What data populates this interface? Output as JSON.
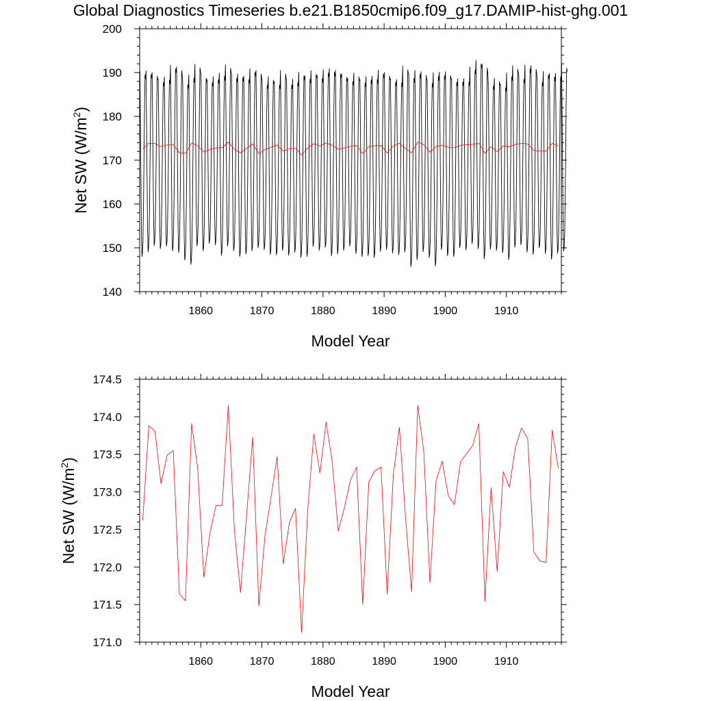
{
  "title": "Global Diagnostics Timeseries b.e21.B1850cmip6.f09_g17.DAMIP-hist-ghg.001",
  "chart_data": [
    {
      "type": "line",
      "xlabel": "Model Year",
      "ylabel": "Net SW (W/m²)",
      "ylabel_main": "Net SW (W/m",
      "ylabel_sup": "2",
      "ylabel_tail": ")",
      "xlim": [
        1850,
        1919
      ],
      "ylim": [
        140,
        200
      ],
      "x_ticks": [
        1860,
        1870,
        1880,
        1890,
        1900,
        1910
      ],
      "x_tick_labels": [
        "1860",
        "1870",
        "1880",
        "1890",
        "1900",
        "1910"
      ],
      "y_ticks": [
        140,
        150,
        160,
        170,
        180,
        190,
        200
      ],
      "y_tick_labels": [
        "140",
        "150",
        "160",
        "170",
        "180",
        "190",
        "200"
      ],
      "grid": false,
      "series": [
        {
          "color": "#000000",
          "style": "monthly",
          "x_start": 1850,
          "annual_max": [
            190.3,
            190.4,
            190.0,
            188.5,
            189.0,
            191.7,
            191.3,
            188.0,
            189.5,
            191.9,
            189.5,
            188.4,
            189.1,
            189.9,
            191.8,
            189.5,
            189.7,
            189.2,
            190.9,
            190.5,
            187.9,
            189.1,
            187.9,
            190.5,
            187.9,
            188.5,
            190.1,
            189.3,
            190.4,
            189.4,
            190.7,
            190.9,
            190.5,
            189.7,
            188.7,
            189.9,
            188.4,
            189.1,
            189.2,
            190.5,
            190.0,
            188.6,
            188.4,
            191.5,
            189.5,
            190.5,
            190.2,
            188.3,
            190.0,
            190.1,
            190.2,
            188.6,
            188.6,
            188.6,
            191.3,
            192.8,
            191.9,
            187.7,
            188.7,
            187.3,
            189.9,
            191.6,
            189.2,
            191.7,
            191.6,
            188.5,
            190.3,
            189.8,
            189.8,
            191.9
          ],
          "annual_min": [
            148.0,
            149.1,
            150.5,
            149.8,
            150.4,
            149.3,
            148.9,
            147.2,
            146.2,
            150.4,
            149.3,
            151.0,
            150.7,
            148.3,
            150.4,
            149.3,
            148.0,
            148.6,
            149.3,
            150.0,
            149.6,
            148.5,
            148.4,
            149.4,
            148.3,
            149.0,
            147.8,
            148.0,
            150.3,
            149.4,
            150.1,
            148.2,
            148.6,
            149.4,
            150.4,
            148.7,
            148.0,
            148.2,
            147.8,
            149.2,
            149.6,
            148.8,
            148.4,
            149.0,
            145.7,
            147.3,
            149.1,
            147.8,
            145.9,
            149.6,
            148.2,
            148.0,
            150.0,
            149.5,
            150.9,
            149.8,
            147.5,
            149.7,
            149.4,
            148.9,
            147.3,
            150.1,
            150.7,
            149.0,
            148.5,
            150.0,
            148.7,
            147.4,
            148.7,
            149.2
          ]
        },
        {
          "color": "#ff0000",
          "style": "annual",
          "x": [
            1850.5,
            1851.5,
            1852.5,
            1853.5,
            1854.5,
            1855.5,
            1856.5,
            1857.5,
            1858.5,
            1859.5,
            1860.5,
            1861.5,
            1862.5,
            1863.5,
            1864.5,
            1865.5,
            1866.5,
            1867.5,
            1868.5,
            1869.5,
            1870.5,
            1871.5,
            1872.5,
            1873.5,
            1874.5,
            1875.5,
            1876.5,
            1877.5,
            1878.5,
            1879.5,
            1880.5,
            1881.5,
            1882.5,
            1883.5,
            1884.5,
            1885.5,
            1886.5,
            1887.5,
            1888.5,
            1889.5,
            1890.5,
            1891.5,
            1892.5,
            1893.5,
            1894.5,
            1895.5,
            1896.5,
            1897.5,
            1898.5,
            1899.5,
            1900.5,
            1901.5,
            1902.5,
            1903.5,
            1904.5,
            1905.5,
            1906.5,
            1907.5,
            1908.5,
            1909.5,
            1910.5,
            1911.5,
            1912.5,
            1913.5,
            1914.5,
            1915.5,
            1916.5,
            1917.5,
            1918.5
          ],
          "y": [
            172.62,
            173.88,
            173.81,
            173.11,
            173.49,
            173.55,
            171.64,
            171.55,
            173.91,
            173.31,
            171.86,
            172.45,
            172.82,
            172.82,
            174.15,
            172.49,
            171.66,
            172.69,
            173.73,
            171.48,
            172.41,
            172.93,
            173.47,
            172.04,
            172.59,
            172.78,
            171.13,
            172.76,
            173.77,
            173.25,
            173.93,
            173.41,
            172.48,
            172.79,
            173.16,
            173.33,
            171.5,
            173.13,
            173.28,
            173.33,
            171.64,
            173.22,
            173.86,
            172.66,
            171.67,
            174.15,
            173.53,
            171.79,
            173.15,
            173.41,
            172.95,
            172.83,
            173.4,
            173.51,
            173.62,
            173.91,
            171.54,
            173.06,
            171.94,
            173.27,
            173.06,
            173.6,
            173.85,
            173.71,
            172.2,
            172.08,
            172.06,
            173.82,
            173.31
          ]
        }
      ]
    },
    {
      "type": "line",
      "xlabel": "Model Year",
      "ylabel": "Net SW (W/m²)",
      "ylabel_main": "Net SW (W/m",
      "ylabel_sup": "2",
      "ylabel_tail": ")",
      "xlim": [
        1850,
        1919
      ],
      "ylim": [
        171.0,
        174.5
      ],
      "x_ticks": [
        1860,
        1870,
        1880,
        1890,
        1900,
        1910
      ],
      "x_tick_labels": [
        "1860",
        "1870",
        "1880",
        "1890",
        "1900",
        "1910"
      ],
      "y_ticks": [
        171.0,
        171.5,
        172.0,
        172.5,
        173.0,
        173.5,
        174.0,
        174.5
      ],
      "y_tick_labels": [
        "171.0",
        "171.5",
        "172.0",
        "172.5",
        "173.0",
        "173.5",
        "174.0",
        "174.5"
      ],
      "grid": false,
      "series": [
        {
          "color": "#ff0000",
          "style": "annual",
          "x": [
            1850.5,
            1851.5,
            1852.5,
            1853.5,
            1854.5,
            1855.5,
            1856.5,
            1857.5,
            1858.5,
            1859.5,
            1860.5,
            1861.5,
            1862.5,
            1863.5,
            1864.5,
            1865.5,
            1866.5,
            1867.5,
            1868.5,
            1869.5,
            1870.5,
            1871.5,
            1872.5,
            1873.5,
            1874.5,
            1875.5,
            1876.5,
            1877.5,
            1878.5,
            1879.5,
            1880.5,
            1881.5,
            1882.5,
            1883.5,
            1884.5,
            1885.5,
            1886.5,
            1887.5,
            1888.5,
            1889.5,
            1890.5,
            1891.5,
            1892.5,
            1893.5,
            1894.5,
            1895.5,
            1896.5,
            1897.5,
            1898.5,
            1899.5,
            1900.5,
            1901.5,
            1902.5,
            1903.5,
            1904.5,
            1905.5,
            1906.5,
            1907.5,
            1908.5,
            1909.5,
            1910.5,
            1911.5,
            1912.5,
            1913.5,
            1914.5,
            1915.5,
            1916.5,
            1917.5,
            1918.5
          ],
          "y": [
            172.62,
            173.88,
            173.81,
            173.11,
            173.49,
            173.55,
            171.64,
            171.55,
            173.91,
            173.31,
            171.86,
            172.45,
            172.82,
            172.82,
            174.15,
            172.49,
            171.66,
            172.69,
            173.73,
            171.48,
            172.41,
            172.93,
            173.47,
            172.04,
            172.59,
            172.78,
            171.13,
            172.76,
            173.77,
            173.25,
            173.93,
            173.41,
            172.48,
            172.79,
            173.16,
            173.33,
            171.5,
            173.13,
            173.28,
            173.33,
            171.64,
            173.22,
            173.86,
            172.66,
            171.67,
            174.15,
            173.53,
            171.79,
            173.15,
            173.41,
            172.95,
            172.83,
            173.4,
            173.51,
            173.62,
            173.91,
            171.54,
            173.06,
            171.94,
            173.27,
            173.06,
            173.6,
            173.85,
            173.71,
            172.2,
            172.08,
            172.06,
            173.82,
            173.31
          ]
        }
      ]
    }
  ]
}
